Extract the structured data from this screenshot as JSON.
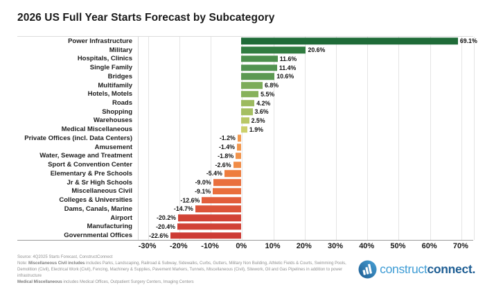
{
  "title": "2026 US Full Year Starts Forecast by Subcategory",
  "chart_data": {
    "type": "bar",
    "orientation": "horizontal",
    "title": "2026 US Full Year Starts Forecast by Subcategory",
    "xlabel": "",
    "ylabel": "",
    "xlim": [
      -33,
      74
    ],
    "grid": true,
    "categories": [
      "Power Infrastructure",
      "Military",
      "Hospitals, Clinics",
      "Single Family",
      "Bridges",
      "Multifamily",
      "Hotels, Motels",
      "Roads",
      "Shopping",
      "Warehouses",
      "Medical Miscellaneous",
      "Private Offices (incl. Data Centers)",
      "Amusement",
      "Water, Sewage and Treatment",
      "Sport & Convention Center",
      "Elementary & Pre Schools",
      "Jr & Sr High Schools",
      "Miscellaneous Civil",
      "Colleges & Universities",
      "Dams, Canals, Marine",
      "Airport",
      "Manufacturing",
      "Governmental Offices"
    ],
    "values": [
      69.1,
      20.6,
      11.6,
      11.4,
      10.6,
      6.8,
      5.5,
      4.2,
      3.6,
      2.5,
      1.9,
      -1.2,
      -1.4,
      -1.8,
      -2.6,
      -5.4,
      -9.0,
      -9.1,
      -12.6,
      -14.7,
      -20.2,
      -20.4,
      -22.6
    ],
    "value_labels": [
      "69.1%",
      "20.6%",
      "11.6%",
      "11.4%",
      "10.6%",
      "6.8%",
      "5.5%",
      "4.2%",
      "3.6%",
      "2.5%",
      "1.9%",
      "-1.2%",
      "-1.4%",
      "-1.8%",
      "-2.6%",
      "-5.4%",
      "-9.0%",
      "-9.1%",
      "-12.6%",
      "-14.7%",
      "-20.2%",
      "-20.4%",
      "-22.6%"
    ],
    "bar_colors": [
      "#1f6b38",
      "#317c41",
      "#4c8f4d",
      "#529351",
      "#5c9952",
      "#7cac59",
      "#87b25c",
      "#9cba5f",
      "#a5bf62",
      "#b9c866",
      "#cdd06b",
      "#f49a4f",
      "#f3974d",
      "#f2934b",
      "#f18c46",
      "#ee7d3e",
      "#e96f3d",
      "#e96e3c",
      "#e25e3b",
      "#dc5439",
      "#d24336",
      "#d14236",
      "#cd3a34"
    ],
    "x_ticks": [
      -30,
      -20,
      -10,
      0,
      10,
      20,
      30,
      40,
      50,
      60,
      70
    ],
    "x_tick_labels": [
      "-30%",
      "-20%",
      "-10%",
      "0%",
      "10%",
      "20%",
      "30%",
      "40%",
      "50%",
      "60%",
      "70%"
    ],
    "legend": "none"
  },
  "footer": {
    "source_line": "Source: 4Q2025 Starts Forecast, ConstructConnect",
    "note_prefix": "Note: ",
    "note_bold": "Miscellaneous Civil includes",
    "note_rest": " includes Parks, Landscaping, Railroad & Subway, Sidewalks, Curbs, Gutters, Military Non Building, Athletic Fields & Courts, Swimming Pools, Demolition (Civil), Electrical Work (Civil), Fencing, Machinery & Supplies, Pavement Markers, Tunnels, Miscellaneous (Civil), Sitework, Oil and Gas Pipelines in addition to power infrastructure",
    "medical_bold": "Medical Miscellaneous",
    "medical_rest": " includes Medical Offices, Outpatient Surgery Centers, Imaging Centers"
  },
  "logo": {
    "part1": "construct",
    "part2": "connect",
    "dot": ".",
    "color_light": "#3e9cd5",
    "color_dark": "#1d5d93"
  }
}
